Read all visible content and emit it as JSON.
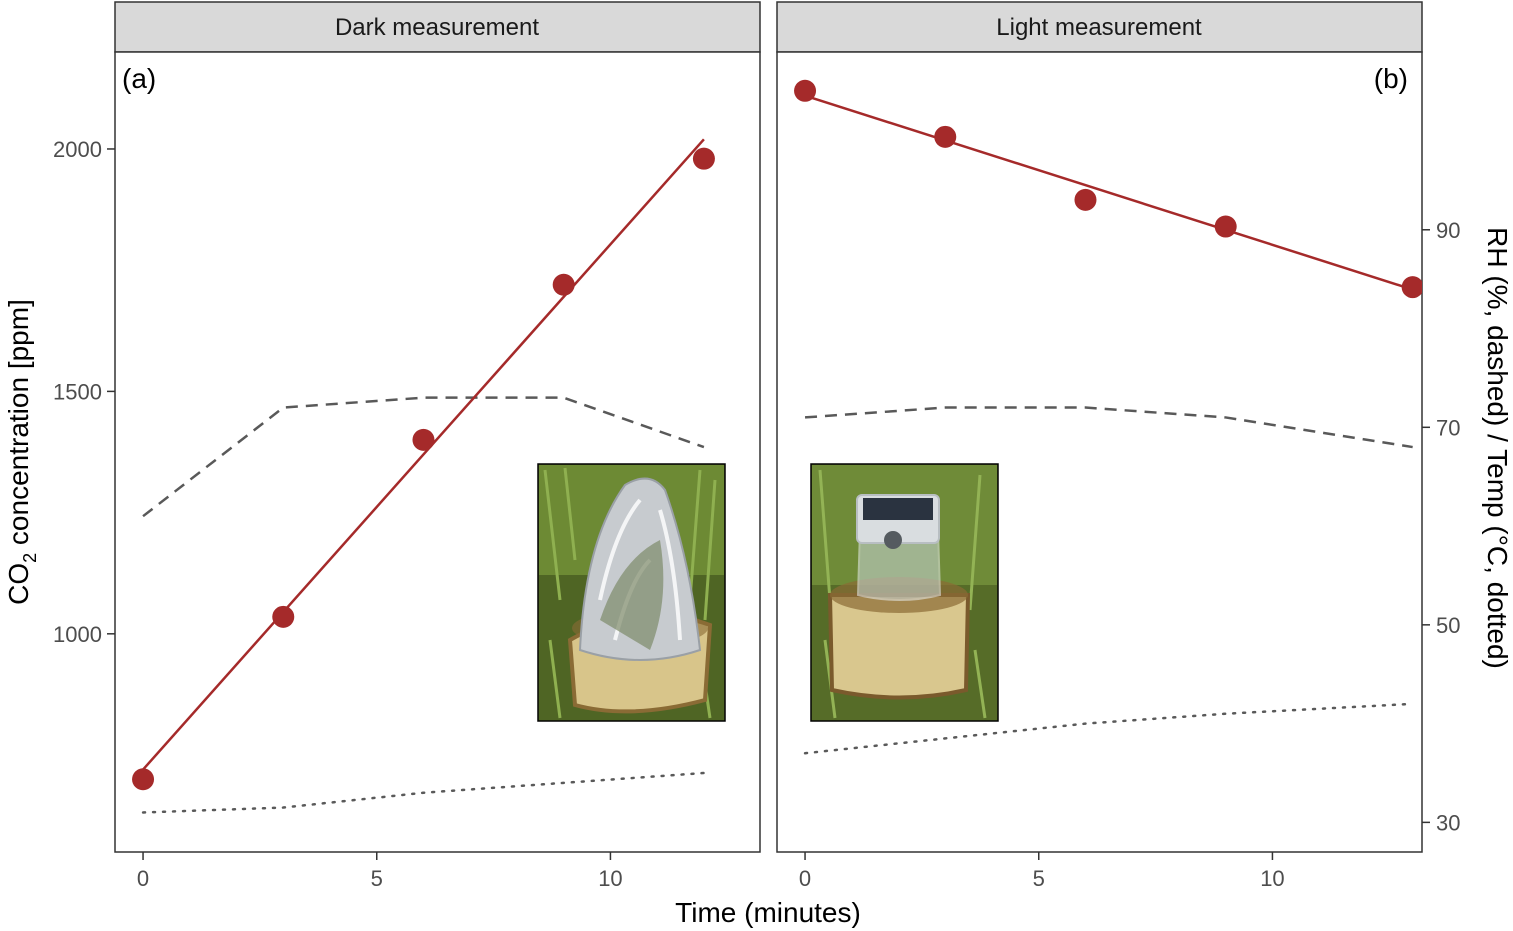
{
  "chart_data": {
    "type": "scatter",
    "xlabel": "Time (minutes)",
    "ylabel_main": "CO",
    "ylabel_sub": "2",
    "ylabel_rest": " concentration [ppm]",
    "ylabel_right": "RH (%, dashed) / Temp (°C, dotted)",
    "ylim": [
      550,
      2200
    ],
    "xlim": [
      -0.6,
      13.2
    ],
    "ylim_right": [
      27,
      108
    ],
    "x_ticks": [
      0,
      5,
      10
    ],
    "y_ticks": [
      1000,
      1500,
      2000
    ],
    "y_ticks_right": [
      30,
      50,
      70,
      90
    ],
    "grid": false,
    "colors": {
      "points": "#a52a2a",
      "fit_line": "#a52a2a",
      "rh_line": "#595959",
      "temp_line": "#595959",
      "strip_fill": "#d9d9d9",
      "panel_border": "#333333"
    },
    "panels": [
      {
        "strip": "Dark measurement",
        "tag": "(a)",
        "photo_icon": "opaque-foil-chamber-photo",
        "points": [
          {
            "x": 0,
            "y": 700
          },
          {
            "x": 3,
            "y": 1035
          },
          {
            "x": 6,
            "y": 1400
          },
          {
            "x": 9,
            "y": 1720
          },
          {
            "x": 12,
            "y": 1980
          }
        ],
        "fit": [
          {
            "x": 0,
            "y": 720
          },
          {
            "x": 12,
            "y": 2020
          }
        ],
        "rh": [
          {
            "x": 0,
            "y": 61
          },
          {
            "x": 3,
            "y": 72
          },
          {
            "x": 6,
            "y": 73
          },
          {
            "x": 9,
            "y": 73
          },
          {
            "x": 12,
            "y": 68
          }
        ],
        "temp": [
          {
            "x": 0,
            "y": 31
          },
          {
            "x": 3,
            "y": 31.5
          },
          {
            "x": 6,
            "y": 33
          },
          {
            "x": 9,
            "y": 34
          },
          {
            "x": 12,
            "y": 35
          }
        ]
      },
      {
        "strip": "Light measurement",
        "tag": "(b)",
        "photo_icon": "transparent-chamber-photo",
        "points": [
          {
            "x": 0,
            "y": 2120
          },
          {
            "x": 3,
            "y": 2025
          },
          {
            "x": 6,
            "y": 1895
          },
          {
            "x": 9,
            "y": 1840
          },
          {
            "x": 13,
            "y": 1715
          }
        ],
        "fit": [
          {
            "x": 0,
            "y": 2110
          },
          {
            "x": 13,
            "y": 1710
          }
        ],
        "rh": [
          {
            "x": 0,
            "y": 71
          },
          {
            "x": 3,
            "y": 72
          },
          {
            "x": 6,
            "y": 72
          },
          {
            "x": 9,
            "y": 71
          },
          {
            "x": 13,
            "y": 68
          }
        ],
        "temp": [
          {
            "x": 0,
            "y": 37
          },
          {
            "x": 3,
            "y": 38.5
          },
          {
            "x": 6,
            "y": 40
          },
          {
            "x": 9,
            "y": 41
          },
          {
            "x": 13,
            "y": 42
          }
        ]
      }
    ]
  }
}
